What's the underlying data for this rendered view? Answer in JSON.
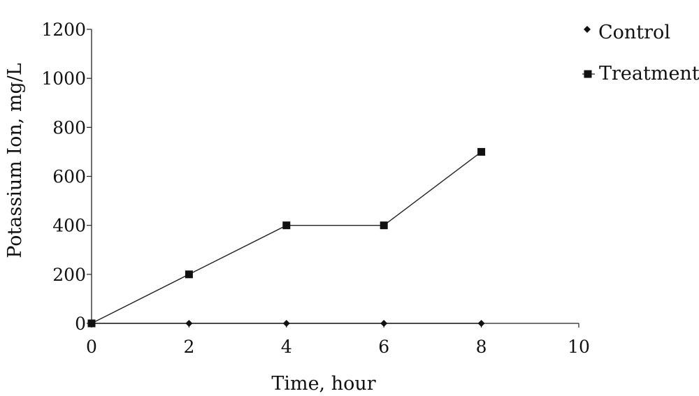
{
  "chart_data": {
    "type": "line",
    "title": "",
    "xlabel": "Time, hour",
    "ylabel": "Potassium Ion, mg/L",
    "xlim": [
      0,
      10
    ],
    "ylim": [
      0,
      1200
    ],
    "xticks": [
      0,
      2,
      4,
      6,
      8,
      10
    ],
    "yticks": [
      0,
      200,
      400,
      600,
      800,
      1000,
      1200
    ],
    "grid": false,
    "legend_position": "top-right",
    "series": [
      {
        "name": "Control",
        "marker": "diamond",
        "x": [
          0,
          2,
          4,
          6,
          8
        ],
        "y": [
          0,
          0,
          0,
          0,
          0
        ]
      },
      {
        "name": "Treatment",
        "marker": "square",
        "x": [
          0,
          2,
          4,
          6,
          8
        ],
        "y": [
          0,
          200,
          400,
          400,
          700
        ]
      }
    ],
    "colors": {
      "line": "#222222",
      "marker": "#111111"
    }
  }
}
